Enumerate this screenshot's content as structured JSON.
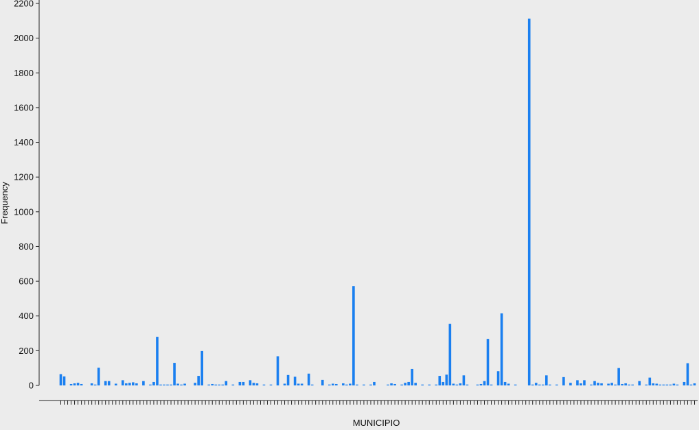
{
  "chart_data": {
    "type": "bar",
    "title": "",
    "xlabel": "MUNICIPIO",
    "ylabel": "Frequency",
    "ylim": [
      0,
      2200
    ],
    "yticks": [
      0,
      200,
      400,
      600,
      800,
      1000,
      1200,
      1400,
      1600,
      1800,
      2000,
      2200
    ],
    "grid": false,
    "legend": "none",
    "bar_color": "#1a7ff0",
    "values": [
      65,
      52,
      0,
      8,
      12,
      15,
      8,
      0,
      0,
      12,
      5,
      102,
      0,
      25,
      25,
      0,
      10,
      0,
      30,
      12,
      15,
      18,
      12,
      0,
      25,
      0,
      5,
      20,
      280,
      5,
      5,
      5,
      5,
      130,
      10,
      5,
      10,
      0,
      0,
      15,
      55,
      198,
      0,
      5,
      8,
      5,
      5,
      5,
      25,
      0,
      5,
      0,
      20,
      20,
      0,
      30,
      15,
      12,
      0,
      5,
      0,
      5,
      0,
      168,
      0,
      10,
      60,
      0,
      50,
      10,
      10,
      0,
      68,
      5,
      0,
      0,
      32,
      0,
      5,
      10,
      8,
      0,
      12,
      5,
      10,
      572,
      5,
      0,
      5,
      0,
      5,
      20,
      0,
      0,
      0,
      5,
      12,
      8,
      0,
      5,
      15,
      20,
      95,
      15,
      0,
      5,
      0,
      5,
      0,
      5,
      55,
      20,
      62,
      355,
      10,
      5,
      12,
      58,
      5,
      0,
      0,
      5,
      8,
      25,
      268,
      5,
      0,
      82,
      415,
      20,
      10,
      0,
      5,
      0,
      0,
      0,
      2112,
      5,
      15,
      5,
      5,
      58,
      5,
      0,
      5,
      0,
      48,
      0,
      15,
      0,
      30,
      12,
      30,
      0,
      5,
      25,
      15,
      12,
      0,
      10,
      15,
      5,
      100,
      8,
      12,
      5,
      5,
      0,
      25,
      0,
      5,
      45,
      12,
      10,
      5,
      5,
      5,
      5,
      10,
      5,
      0,
      20,
      128,
      5,
      12
    ]
  }
}
